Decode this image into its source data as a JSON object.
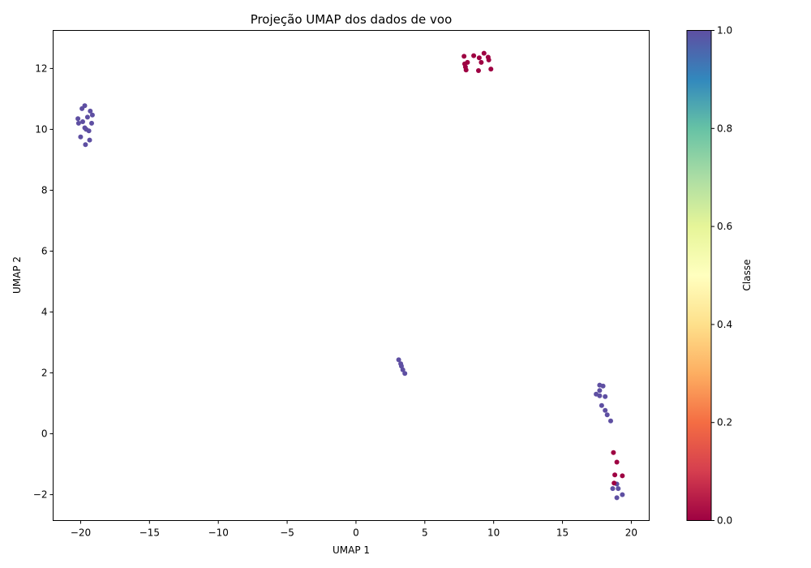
{
  "chart_data": {
    "type": "scatter",
    "title": "Projeção UMAP dos dados de voo",
    "xlabel": "UMAP 1",
    "ylabel": "UMAP 2",
    "xlim": [
      -22,
      21.3
    ],
    "ylim": [
      -2.85,
      13.25
    ],
    "x_ticks": [
      -20,
      -15,
      -10,
      -5,
      0,
      5,
      10,
      15,
      20
    ],
    "x_tick_labels": [
      "−20",
      "−15",
      "−10",
      "−5",
      "0",
      "5",
      "10",
      "15",
      "20"
    ],
    "y_ticks": [
      -2,
      0,
      2,
      4,
      6,
      8,
      10,
      12
    ],
    "y_tick_labels": [
      "−2",
      "0",
      "2",
      "4",
      "6",
      "8",
      "10",
      "12"
    ],
    "grid": false,
    "colormap": "Spectral",
    "colorbar": {
      "label": "Classe",
      "range": [
        0,
        1
      ],
      "ticks": [
        0.0,
        0.2,
        0.4,
        0.6,
        0.8,
        1.0
      ],
      "tick_labels": [
        "0.0",
        "0.2",
        "0.4",
        "0.6",
        "0.8",
        "1.0"
      ],
      "stops": [
        "#9e0142",
        "#d53e4f",
        "#f46d43",
        "#fdae61",
        "#fee08b",
        "#ffffbf",
        "#e6f598",
        "#abdda4",
        "#66c2a5",
        "#3288bd",
        "#5e4fa2"
      ]
    },
    "series": [
      {
        "class": 1,
        "color": "#5e4fa2",
        "points": [
          [
            -19.7,
            10.78
          ],
          [
            -19.9,
            10.68
          ],
          [
            -19.3,
            10.6
          ],
          [
            -19.15,
            10.47
          ],
          [
            -19.5,
            10.4
          ],
          [
            -20.2,
            10.35
          ],
          [
            -19.85,
            10.25
          ],
          [
            -20.15,
            10.2
          ],
          [
            -19.2,
            10.2
          ],
          [
            -19.7,
            10.05
          ],
          [
            -19.6,
            10.0
          ],
          [
            -19.4,
            9.95
          ],
          [
            -20.0,
            9.75
          ],
          [
            -19.35,
            9.65
          ],
          [
            -19.65,
            9.5
          ],
          [
            3.1,
            2.43
          ],
          [
            3.25,
            2.3
          ],
          [
            3.3,
            2.22
          ],
          [
            3.4,
            2.1
          ],
          [
            3.55,
            1.98
          ],
          [
            17.7,
            1.6
          ],
          [
            17.95,
            1.57
          ],
          [
            17.7,
            1.42
          ],
          [
            17.45,
            1.3
          ],
          [
            17.7,
            1.25
          ],
          [
            18.1,
            1.22
          ],
          [
            17.85,
            0.93
          ],
          [
            18.1,
            0.77
          ],
          [
            18.25,
            0.62
          ],
          [
            18.5,
            0.42
          ],
          [
            18.95,
            -1.65
          ],
          [
            18.65,
            -1.8
          ],
          [
            19.05,
            -1.8
          ],
          [
            19.35,
            -2.0
          ],
          [
            18.95,
            -2.1
          ]
        ]
      },
      {
        "class": 0,
        "color": "#9e0142",
        "points": [
          [
            7.85,
            12.4
          ],
          [
            8.55,
            12.42
          ],
          [
            9.3,
            12.5
          ],
          [
            8.95,
            12.35
          ],
          [
            9.6,
            12.37
          ],
          [
            9.65,
            12.28
          ],
          [
            8.1,
            12.2
          ],
          [
            7.9,
            12.15
          ],
          [
            9.1,
            12.2
          ],
          [
            7.95,
            12.05
          ],
          [
            8.0,
            11.95
          ],
          [
            8.9,
            11.93
          ],
          [
            9.8,
            11.98
          ],
          [
            18.7,
            -0.62
          ],
          [
            18.95,
            -0.93
          ],
          [
            18.8,
            -1.35
          ],
          [
            19.35,
            -1.38
          ],
          [
            18.75,
            -1.62
          ]
        ]
      }
    ]
  }
}
